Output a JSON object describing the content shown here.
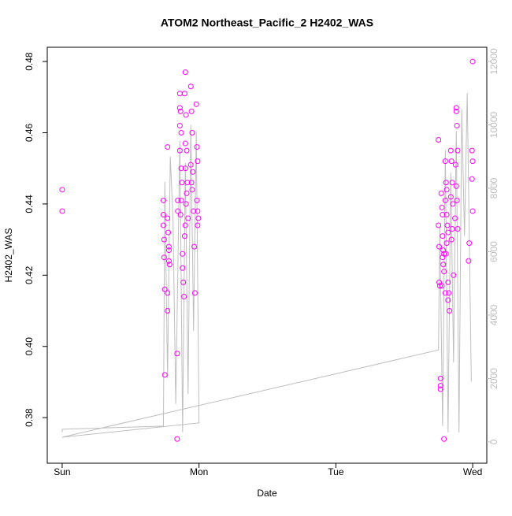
{
  "chart_data": {
    "type": "scatter",
    "title": "ATOM2 Northeast_Pacific_2 H2402_WAS",
    "xlabel": "Date",
    "ylabel": "H2402_WAS",
    "xlim": [
      -0.109,
      3.103
    ],
    "xticks": [
      {
        "value": 0,
        "label": "Sun"
      },
      {
        "value": 1,
        "label": "Mon"
      },
      {
        "value": 2,
        "label": "Tue"
      },
      {
        "value": 3,
        "label": "Wed"
      }
    ],
    "ylim": [
      0.3672,
      0.484
    ],
    "yticks": [
      0.38,
      {
        "value": 0.4,
        "label": "0.40"
      },
      0.42,
      0.44,
      0.46,
      0.48
    ],
    "y2lim": [
      -671,
      12447
    ],
    "y2ticks": [
      0,
      2000,
      4000,
      6000,
      8000,
      10000,
      12000
    ],
    "series": [
      {
        "type": "scatter",
        "color": "#ff00ff",
        "x": [
          0,
          0,
          0.74,
          0.74,
          0.74,
          0.745,
          0.745,
          0.75,
          0.75,
          0.77,
          0.77,
          0.775,
          0.78,
          0.78,
          0.78,
          0.785,
          0.77,
          0.77,
          0.84,
          0.84,
          0.845,
          0.845,
          0.86,
          0.86,
          0.865,
          0.86,
          0.87,
          0.86,
          0.87,
          0.875,
          0.87,
          0.865,
          0.88,
          0.88,
          0.885,
          0.89,
          0.9,
          0.895,
          0.905,
          0.9,
          0.91,
          0.9,
          0.915,
          0.91,
          0.905,
          0.92,
          0.9,
          0.895,
          0.94,
          0.945,
          0.95,
          0.94,
          0.955,
          0.945,
          0.95,
          0.96,
          0.965,
          0.97,
          0.98,
          0.985,
          0.99,
          0.985,
          0.99,
          0.995,
          0.99,
          2.75,
          2.75,
          2.755,
          2.755,
          2.76,
          2.765,
          2.765,
          2.765,
          2.77,
          2.775,
          2.78,
          2.78,
          2.785,
          2.79,
          2.78,
          2.785,
          2.79,
          2.775,
          2.8,
          2.79,
          2.8,
          2.805,
          2.81,
          2.8,
          2.81,
          2.815,
          2.82,
          2.81,
          2.805,
          2.82,
          2.825,
          2.82,
          2.83,
          2.84,
          2.845,
          2.85,
          2.84,
          2.855,
          2.85,
          2.845,
          2.86,
          2.88,
          2.88,
          2.885,
          2.89,
          2.875,
          2.88,
          2.885,
          2.87,
          2.89,
          2.97,
          2.975,
          3.0,
          2.995,
          3.0,
          2.995,
          3.0
        ],
        "values": [
          0.444,
          0.438,
          0.441,
          0.437,
          0.434,
          0.43,
          0.425,
          0.416,
          0.392,
          0.456,
          0.436,
          0.432,
          0.428,
          0.427,
          0.424,
          0.423,
          0.415,
          0.41,
          0.374,
          0.398,
          0.438,
          0.441,
          0.471,
          0.467,
          0.466,
          0.462,
          0.46,
          0.455,
          0.45,
          0.446,
          0.441,
          0.437,
          0.426,
          0.422,
          0.418,
          0.414,
          0.477,
          0.471,
          0.465,
          0.457,
          0.455,
          0.45,
          0.446,
          0.443,
          0.44,
          0.436,
          0.434,
          0.431,
          0.473,
          0.466,
          0.46,
          0.451,
          0.449,
          0.446,
          0.444,
          0.438,
          0.428,
          0.415,
          0.468,
          0.456,
          0.452,
          0.441,
          0.438,
          0.436,
          0.434,
          0.458,
          0.434,
          0.428,
          0.418,
          0.417,
          0.391,
          0.389,
          0.388,
          0.443,
          0.439,
          0.437,
          0.431,
          0.427,
          0.426,
          0.425,
          0.423,
          0.421,
          0.417,
          0.415,
          0.374,
          0.452,
          0.446,
          0.444,
          0.441,
          0.437,
          0.434,
          0.432,
          0.429,
          0.426,
          0.418,
          0.415,
          0.413,
          0.41,
          0.455,
          0.452,
          0.446,
          0.442,
          0.44,
          0.433,
          0.43,
          0.42,
          0.467,
          0.466,
          0.462,
          0.455,
          0.451,
          0.445,
          0.441,
          0.436,
          0.433,
          0.424,
          0.429,
          0.48,
          0.455,
          0.452,
          0.447,
          0.438
        ]
      },
      {
        "type": "line",
        "color": "#bebebe",
        "axis": "y2",
        "x": [
          0,
          0,
          0.74,
          0.75,
          0.77,
          0.79,
          0.81,
          0.83,
          0.86,
          0.88,
          0.9,
          0.92,
          0.94,
          0.96,
          0.98,
          1.0,
          0,
          2.75,
          2.76,
          2.78,
          2.8,
          2.82,
          2.84,
          2.86,
          2.88,
          2.9,
          2.92,
          2.94,
          2.96,
          2.99
        ],
        "values": [
          300,
          400,
          500,
          8200,
          2000,
          9000,
          7000,
          1200,
          9500,
          300,
          8800,
          1500,
          10000,
          3500,
          9800,
          600,
          150,
          2900,
          6800,
          500,
          9200,
          300,
          8500,
          2500,
          9800,
          300,
          10500,
          6500,
          11000,
          1900
        ]
      }
    ]
  }
}
